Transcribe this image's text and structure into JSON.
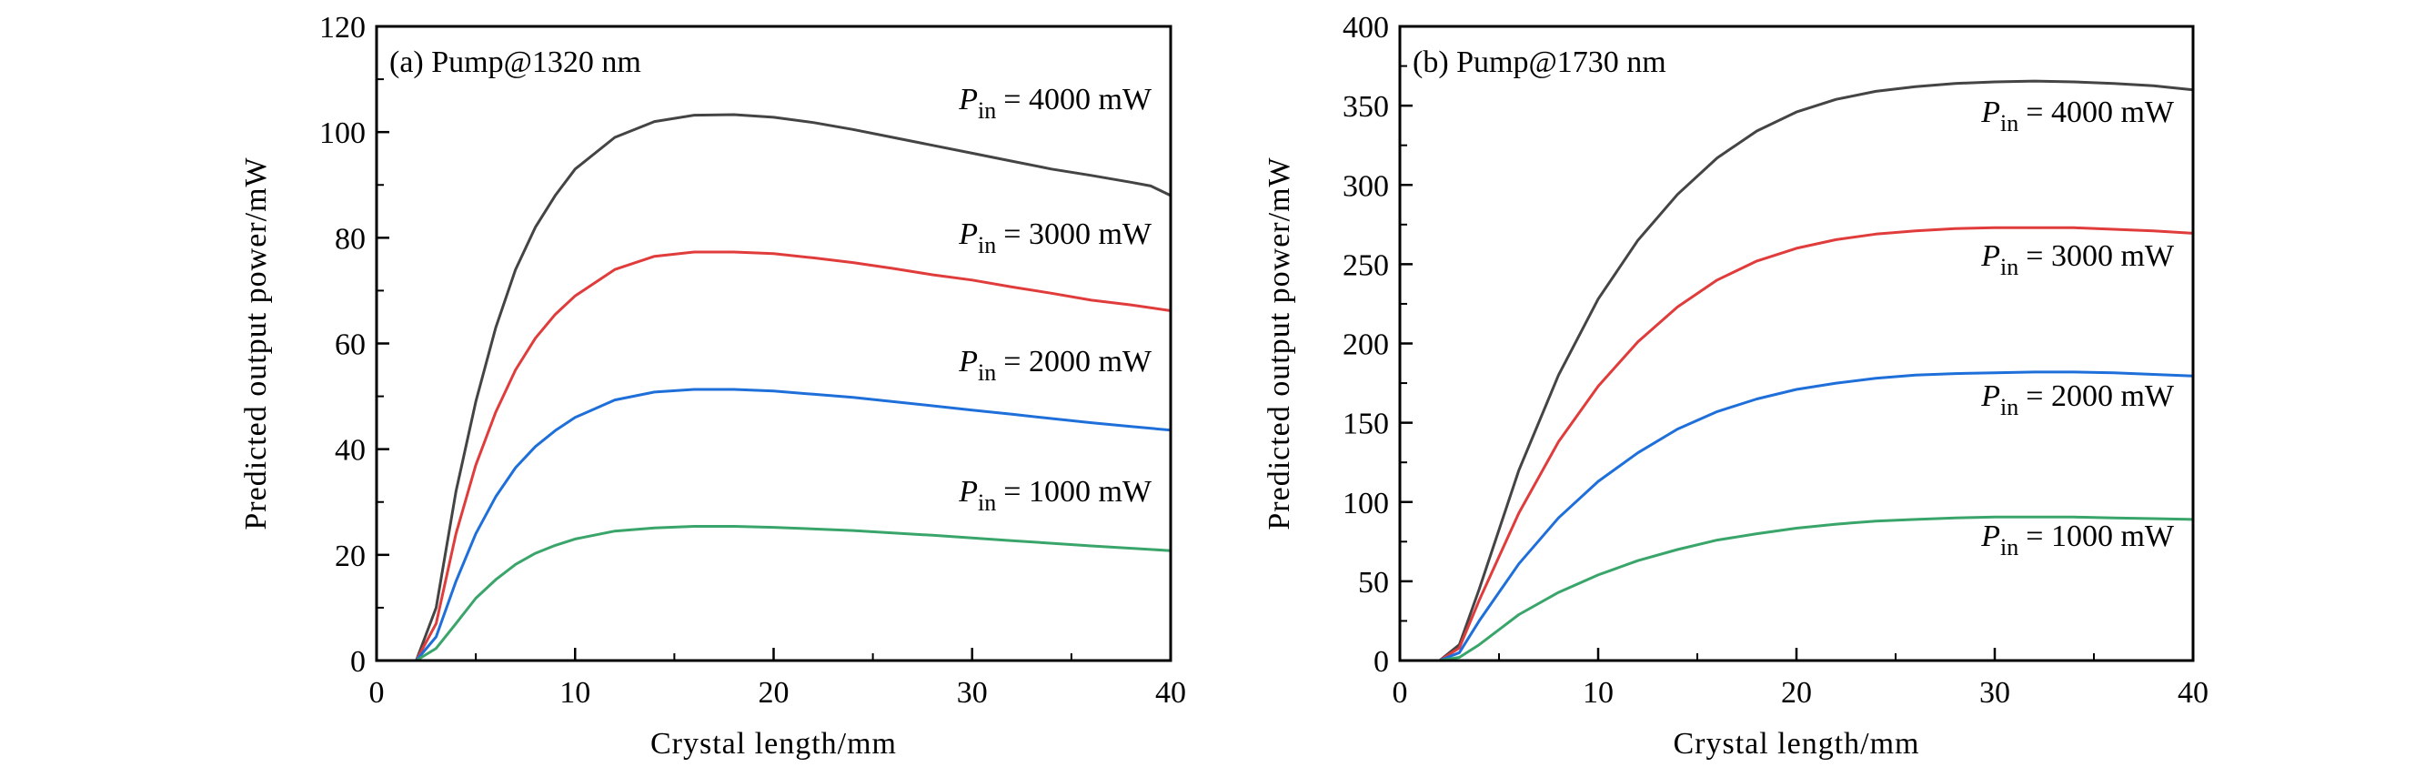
{
  "chart_data": [
    {
      "type": "line",
      "panel_label": "(a) Pump@1320 nm",
      "xlabel": "Crystal length/mm",
      "ylabel": "Predicted output power/mW",
      "xlim": [
        0,
        40
      ],
      "ylim": [
        0,
        120
      ],
      "xticks": [
        0,
        10,
        20,
        30,
        40
      ],
      "yticks": [
        0,
        20,
        40,
        60,
        80,
        100,
        120
      ],
      "grid": false,
      "series": [
        {
          "label_var": "P",
          "label_sub": "in",
          "label_rest": "= 4000 mW",
          "color": "#444444",
          "x": [
            1,
            2,
            3,
            4,
            5,
            6,
            7,
            8,
            9,
            10,
            12,
            14,
            16,
            18,
            20,
            22,
            24,
            26,
            28,
            30,
            32,
            34,
            36,
            38,
            39,
            40
          ],
          "y": [
            0,
            0,
            10,
            32,
            49,
            63,
            74,
            82,
            88,
            93,
            99,
            102,
            103.2,
            103.3,
            102.8,
            101.8,
            100.5,
            99,
            97.5,
            96,
            94.5,
            93,
            91.8,
            90.5,
            89.8,
            88
          ]
        },
        {
          "label_var": "P",
          "label_sub": "in",
          "label_rest": "= 3000 mW",
          "color": "#e03c3c",
          "x": [
            1,
            2,
            3,
            4,
            5,
            6,
            7,
            8,
            9,
            10,
            12,
            14,
            16,
            18,
            20,
            22,
            24,
            26,
            28,
            30,
            32,
            34,
            36,
            38,
            40
          ],
          "y": [
            0,
            0,
            7,
            24,
            37,
            47,
            55,
            61,
            65.5,
            69,
            74,
            76.5,
            77.3,
            77.3,
            77,
            76.2,
            75.3,
            74.2,
            73,
            72,
            70.7,
            69.5,
            68.2,
            67.3,
            66.2
          ]
        },
        {
          "label_var": "P",
          "label_sub": "in",
          "label_rest": "= 2000 mW",
          "color": "#1e6fd9",
          "x": [
            1,
            2,
            3,
            4,
            5,
            6,
            7,
            8,
            9,
            10,
            12,
            14,
            16,
            18,
            20,
            22,
            24,
            26,
            28,
            30,
            32,
            34,
            36,
            38,
            40
          ],
          "y": [
            0,
            0,
            4.5,
            15,
            24,
            31,
            36.5,
            40.5,
            43.5,
            46,
            49.3,
            50.8,
            51.3,
            51.3,
            51,
            50.4,
            49.8,
            49,
            48.2,
            47.4,
            46.6,
            45.8,
            45,
            44.3,
            43.6
          ]
        },
        {
          "label_var": "P",
          "label_sub": "in",
          "label_rest": "= 1000 mW",
          "color": "#3aa56a",
          "x": [
            1,
            2,
            3,
            4,
            5,
            6,
            7,
            8,
            9,
            10,
            12,
            14,
            16,
            18,
            20,
            24,
            28,
            32,
            36,
            40
          ],
          "y": [
            0,
            0,
            2.3,
            7,
            11.8,
            15.3,
            18.2,
            20.3,
            21.8,
            23,
            24.5,
            25.1,
            25.4,
            25.4,
            25.2,
            24.6,
            23.7,
            22.7,
            21.7,
            20.8
          ]
        }
      ]
    },
    {
      "type": "line",
      "panel_label": "(b) Pump@1730 nm",
      "xlabel": "Crystal length/mm",
      "ylabel": "Predicted output power/mW",
      "xlim": [
        0,
        40
      ],
      "ylim": [
        0,
        400
      ],
      "xticks": [
        0,
        10,
        20,
        30,
        40
      ],
      "yticks": [
        0,
        50,
        100,
        150,
        200,
        250,
        300,
        350,
        400
      ],
      "grid": false,
      "series": [
        {
          "label_var": "P",
          "label_sub": "in",
          "label_rest": "= 4000 mW",
          "color": "#444444",
          "x": [
            1,
            2,
            3,
            4,
            6,
            8,
            10,
            12,
            14,
            16,
            18,
            20,
            22,
            24,
            26,
            28,
            30,
            32,
            34,
            36,
            38,
            40
          ],
          "y": [
            0,
            0,
            10,
            45,
            120,
            180,
            228,
            265,
            294,
            317,
            334,
            346,
            354,
            359,
            362,
            364,
            365,
            365.5,
            365,
            364,
            362.5,
            360
          ]
        },
        {
          "label_var": "P",
          "label_sub": "in",
          "label_rest": "= 3000 mW",
          "color": "#e03c3c",
          "x": [
            1,
            2,
            3,
            4,
            6,
            8,
            10,
            12,
            14,
            16,
            18,
            20,
            22,
            24,
            26,
            28,
            30,
            32,
            34,
            36,
            38,
            40
          ],
          "y": [
            0,
            0,
            8,
            38,
            93,
            138,
            173,
            201,
            223,
            240,
            252,
            260,
            265.5,
            269,
            271,
            272.5,
            273,
            273,
            273,
            272,
            271,
            269.5
          ]
        },
        {
          "label_var": "P",
          "label_sub": "in",
          "label_rest": "= 2000 mW",
          "color": "#1e6fd9",
          "x": [
            1,
            2,
            3,
            4,
            6,
            8,
            10,
            12,
            14,
            16,
            18,
            20,
            22,
            24,
            26,
            28,
            30,
            32,
            34,
            36,
            38,
            40
          ],
          "y": [
            0,
            0,
            5,
            25,
            61,
            90,
            113,
            131,
            146,
            157,
            165,
            171,
            175,
            178,
            180,
            181,
            181.5,
            182,
            182,
            181.5,
            180.5,
            179.5
          ]
        },
        {
          "label_var": "P",
          "label_sub": "in",
          "label_rest": "= 1000 mW",
          "color": "#3aa56a",
          "x": [
            1,
            2,
            3,
            4,
            6,
            8,
            10,
            12,
            14,
            16,
            18,
            20,
            22,
            24,
            26,
            28,
            30,
            32,
            34,
            36,
            38,
            40
          ],
          "y": [
            0,
            0,
            2,
            10,
            29,
            43,
            54,
            63,
            70,
            76,
            80,
            83.5,
            86,
            88,
            89,
            90,
            90.5,
            90.5,
            90.5,
            90,
            89.5,
            89
          ]
        }
      ]
    }
  ]
}
